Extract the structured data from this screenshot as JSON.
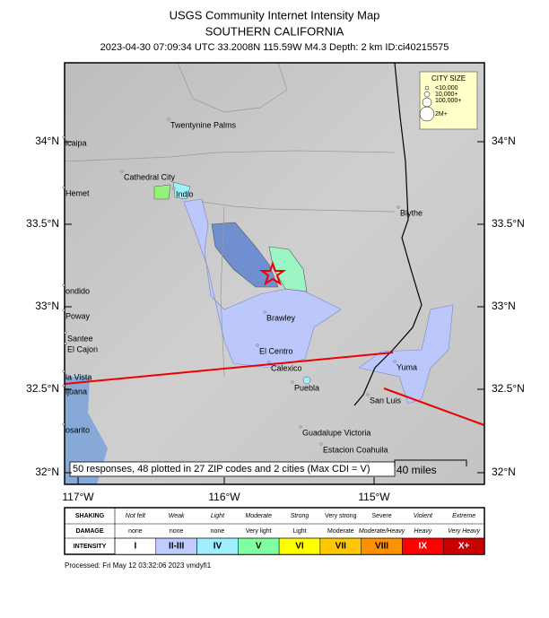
{
  "header": {
    "title": "USGS Community Internet Intensity Map",
    "subtitle": "SOUTHERN CALIFORNIA",
    "event": "2023-04-30 07:09:34 UTC 33.2008N 115.59W M4.3 Depth: 2 km ID:ci40215575"
  },
  "map": {
    "lat_labels": [
      "34°N",
      "33.5°N",
      "33°N",
      "32.5°N",
      "32°N"
    ],
    "lon_labels": [
      "117°W",
      "116°W",
      "115°W"
    ],
    "cities": [
      "Twentynine Palms",
      "Cathedral City",
      "Indio",
      "icaipa",
      "Hemet",
      "Blythe",
      "ondido",
      "Poway",
      "Santee",
      "El Cajon",
      "la Vista",
      "ijuana",
      "osarito",
      "Brawley",
      "El Centro",
      "Calexico",
      "Puebla",
      "Yuma",
      "San Luis",
      "Guadalupe Victoria",
      "Estacion Coahuila"
    ],
    "city_size": {
      "title": "CITY SIZE",
      "entries": [
        "<10,000",
        "10,000+",
        "100,000+",
        "2M+"
      ]
    },
    "summary": "50 responses, 48 plotted in 27 ZIP codes and 2 cities (Max CDI = V)",
    "scale_bar": "40 miles"
  },
  "legend": {
    "row_headers": [
      "SHAKING",
      "DAMAGE",
      "INTENSITY"
    ],
    "shaking": [
      "Not felt",
      "Weak",
      "Light",
      "Moderate",
      "Strong",
      "Very strong",
      "Severe",
      "Violent",
      "Extreme"
    ],
    "damage": [
      "none",
      "none",
      "none",
      "Very light",
      "Light",
      "Moderate",
      "Moderate/Heavy",
      "Heavy",
      "Very Heavy"
    ],
    "intensity": [
      "I",
      "II-III",
      "IV",
      "V",
      "VI",
      "VII",
      "VIII",
      "IX",
      "X+"
    ]
  },
  "footer": "Processed: Fri May 12 03:32:06 2023 vmdyfi1"
}
